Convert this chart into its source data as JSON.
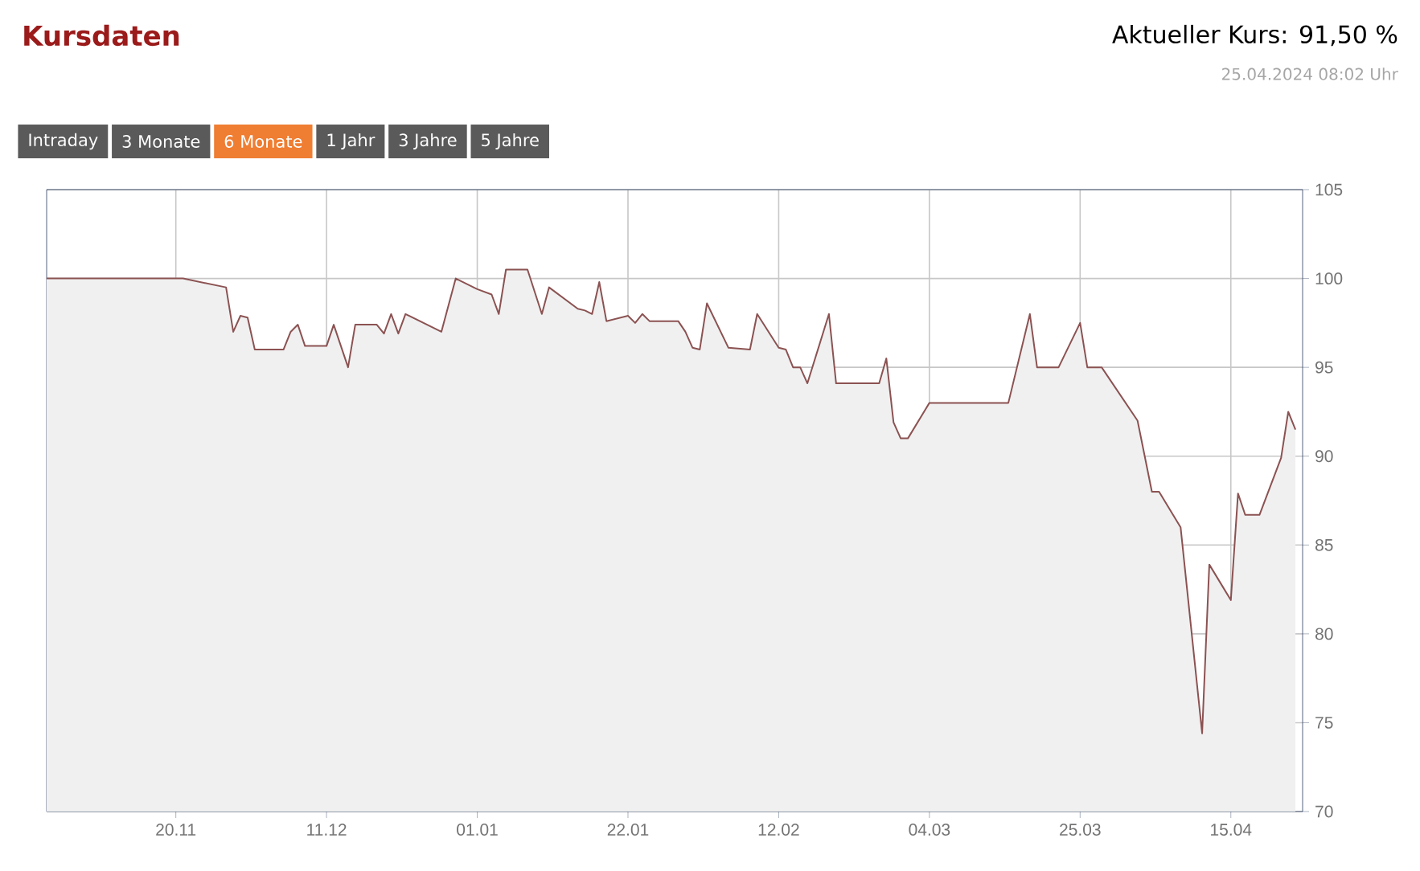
{
  "chart_data": {
    "type": "area",
    "title": "Kursdaten",
    "subtitle": "Aktueller Kurs: 91,50 %",
    "annotations": [
      "25.04.2024 08:02 Uhr",
      "Intraday",
      "3 Monate",
      "6 Monate",
      "1 Jahr",
      "3 Jahre",
      "5 Jahre"
    ],
    "x": [
      "2023-11-02",
      "2023-11-21",
      "2023-11-27",
      "2023-11-28",
      "2023-11-29",
      "2023-11-30",
      "2023-12-01",
      "2023-12-05",
      "2023-12-06",
      "2023-12-07",
      "2023-12-08",
      "2023-12-11",
      "2023-12-12",
      "2023-12-14",
      "2023-12-15",
      "2023-12-18",
      "2023-12-19",
      "2023-12-20",
      "2023-12-21",
      "2023-12-22",
      "2023-12-27",
      "2023-12-29",
      "2024-01-01",
      "2024-01-03",
      "2024-01-04",
      "2024-01-05",
      "2024-01-08",
      "2024-01-10",
      "2024-01-11",
      "2024-01-15",
      "2024-01-16",
      "2024-01-17",
      "2024-01-18",
      "2024-01-19",
      "2024-01-22",
      "2024-01-23",
      "2024-01-24",
      "2024-01-25",
      "2024-01-29",
      "2024-01-30",
      "2024-01-31",
      "2024-02-01",
      "2024-02-02",
      "2024-02-05",
      "2024-02-08",
      "2024-02-09",
      "2024-02-12",
      "2024-02-13",
      "2024-02-14",
      "2024-02-15",
      "2024-02-16",
      "2024-02-19",
      "2024-02-20",
      "2024-02-26",
      "2024-02-27",
      "2024-02-28",
      "2024-02-29",
      "2024-03-01",
      "2024-03-04",
      "2024-03-15",
      "2024-03-18",
      "2024-03-19",
      "2024-03-22",
      "2024-03-25",
      "2024-03-26",
      "2024-03-28",
      "2024-04-02",
      "2024-04-04",
      "2024-04-05",
      "2024-04-08",
      "2024-04-11",
      "2024-04-12",
      "2024-04-15",
      "2024-04-16",
      "2024-04-17",
      "2024-04-19",
      "2024-04-22",
      "2024-04-23",
      "2024-04-24"
    ],
    "series": [
      {
        "color": "#8c5252",
        "values": [
          100,
          100,
          99.5,
          97,
          97.9,
          97.8,
          96,
          96,
          97,
          97.4,
          96.2,
          96.2,
          97.4,
          95,
          97.4,
          97.4,
          96.9,
          98,
          96.9,
          98,
          97,
          100,
          99.4,
          99.1,
          98,
          100.5,
          100.5,
          98,
          99.5,
          98.3,
          98.2,
          98,
          99.8,
          97.6,
          97.9,
          97.5,
          98,
          97.6,
          97.6,
          97,
          96.1,
          96,
          98.6,
          96.1,
          96,
          98,
          96.1,
          96,
          95,
          95,
          94.1,
          98,
          94.1,
          94.1,
          95.5,
          91.9,
          91,
          91,
          93,
          93,
          98,
          95,
          95,
          97.5,
          95,
          95,
          92,
          88,
          88,
          86,
          74.4,
          83.9,
          81.9,
          87.9,
          86.7,
          86.7,
          89.9,
          92.5,
          91.5
        ]
      }
    ],
    "xlim": [
      "2023-11-02",
      "2024-04-25"
    ],
    "xticks": [
      {
        "value": "2023-11-20",
        "label": "20.11"
      },
      {
        "value": "2023-12-11",
        "label": "11.12"
      },
      {
        "value": "2024-01-01",
        "label": "01.01"
      },
      {
        "value": "2024-01-22",
        "label": "22.01"
      },
      {
        "value": "2024-02-12",
        "label": "12.02"
      },
      {
        "value": "2024-03-04",
        "label": "04.03"
      },
      {
        "value": "2024-03-25",
        "label": "25.03"
      },
      {
        "value": "2024-04-15",
        "label": "15.04"
      }
    ],
    "ylim": [
      70,
      105
    ],
    "yticks": [
      70,
      75,
      80,
      85,
      90,
      95,
      100,
      105
    ],
    "grid": true
  }
}
